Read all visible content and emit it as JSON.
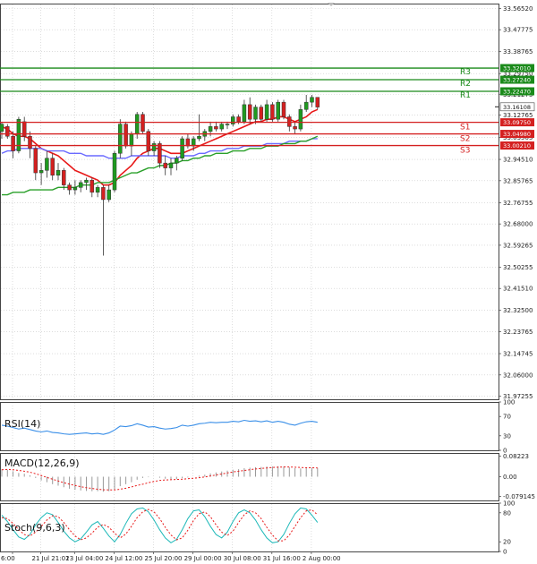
{
  "chart_data": [
    {
      "type": "candlestick",
      "panel": "price",
      "ylim": [
        31.96,
        33.585
      ],
      "y_ticks": [
        "33.56520",
        "33.47775",
        "33.38765",
        "33.29750",
        "33.21275",
        "33.12765",
        "33.03505",
        "32.94510",
        "32.85765",
        "32.76755",
        "32.68000",
        "32.59265",
        "32.50255",
        "32.41510",
        "32.32500",
        "32.23765",
        "32.14745",
        "32.06000",
        "31.97255"
      ],
      "y_tick_values": [
        33.5652,
        33.47775,
        33.38765,
        33.2975,
        33.21275,
        33.12765,
        33.03505,
        32.9451,
        32.85765,
        32.76755,
        32.68,
        32.59265,
        32.50255,
        32.4151,
        32.325,
        32.23765,
        32.14745,
        32.06,
        31.97255
      ],
      "x_ticks": [
        "6:00",
        "21 Jul 21:01",
        "23 Jul 04:00",
        "24 Jul 12:00",
        "25 Jul 20:00",
        "29 Jul 00:00",
        "30 Jul 08:00",
        "31 Jul 16:00",
        "2 Aug 00:00"
      ],
      "levels": [
        {
          "name": "R3",
          "value": 33.3201,
          "label": "33.32010",
          "color": "#1a8a1a"
        },
        {
          "name": "R2",
          "value": 33.2724,
          "label": "33.27240",
          "color": "#1a8a1a"
        },
        {
          "name": "R1",
          "value": 33.2247,
          "label": "33.22470",
          "color": "#1a8a1a"
        },
        {
          "name": "S1",
          "value": 33.0975,
          "label": "33.09750",
          "color": "#d42020"
        },
        {
          "name": "S2",
          "value": 33.0498,
          "label": "33.04980",
          "color": "#d42020"
        },
        {
          "name": "S3",
          "value": 33.0021,
          "label": "33.00210",
          "color": "#d42020"
        }
      ],
      "current_price": {
        "value": 33.16108,
        "label": "33.16108"
      },
      "candles": [
        [
          33.06,
          33.1,
          33.03,
          33.09
        ],
        [
          33.08,
          33.09,
          33.03,
          33.04
        ],
        [
          33.04,
          33.06,
          32.95,
          32.98
        ],
        [
          32.98,
          33.12,
          32.97,
          33.11
        ],
        [
          33.1,
          33.12,
          33.02,
          33.04
        ],
        [
          33.04,
          33.06,
          32.95,
          32.99
        ],
        [
          32.99,
          33.0,
          32.86,
          32.89
        ],
        [
          32.89,
          32.93,
          32.84,
          32.9
        ],
        [
          32.9,
          32.98,
          32.87,
          32.95
        ],
        [
          32.95,
          32.97,
          32.86,
          32.88
        ],
        [
          32.88,
          32.93,
          32.86,
          32.9
        ],
        [
          32.9,
          32.91,
          32.82,
          32.84
        ],
        [
          32.84,
          32.85,
          32.8,
          32.82
        ],
        [
          32.82,
          32.86,
          32.8,
          32.83
        ],
        [
          32.83,
          32.86,
          32.81,
          32.85
        ],
        [
          32.85,
          32.87,
          32.82,
          32.86
        ],
        [
          32.86,
          32.87,
          32.79,
          32.81
        ],
        [
          32.81,
          32.84,
          32.79,
          32.83
        ],
        [
          32.83,
          32.84,
          32.55,
          32.78
        ],
        [
          32.78,
          32.84,
          32.77,
          32.82
        ],
        [
          32.82,
          32.98,
          32.81,
          32.97
        ],
        [
          32.97,
          33.11,
          32.95,
          33.09
        ],
        [
          33.09,
          33.1,
          32.99,
          33.0
        ],
        [
          33.0,
          33.06,
          32.96,
          33.05
        ],
        [
          33.05,
          33.14,
          33.03,
          33.13
        ],
        [
          33.13,
          33.14,
          33.05,
          33.06
        ],
        [
          33.06,
          33.07,
          32.96,
          32.98
        ],
        [
          32.98,
          33.02,
          32.96,
          33.01
        ],
        [
          33.01,
          33.02,
          32.91,
          32.93
        ],
        [
          32.93,
          32.96,
          32.88,
          32.91
        ],
        [
          32.91,
          32.95,
          32.88,
          32.93
        ],
        [
          32.93,
          32.96,
          32.9,
          32.95
        ],
        [
          32.95,
          33.04,
          32.94,
          33.03
        ],
        [
          33.03,
          33.05,
          32.99,
          33.0
        ],
        [
          33.0,
          33.04,
          32.98,
          33.03
        ],
        [
          33.03,
          33.13,
          33.02,
          33.04
        ],
        [
          33.04,
          33.07,
          33.02,
          33.06
        ],
        [
          33.06,
          33.1,
          33.04,
          33.08
        ],
        [
          33.08,
          33.1,
          33.06,
          33.07
        ],
        [
          33.07,
          33.1,
          33.06,
          33.09
        ],
        [
          33.09,
          33.1,
          33.07,
          33.09
        ],
        [
          33.09,
          33.13,
          33.08,
          33.12
        ],
        [
          33.12,
          33.13,
          33.09,
          33.1
        ],
        [
          33.1,
          33.19,
          33.09,
          33.17
        ],
        [
          33.17,
          33.2,
          33.09,
          33.11
        ],
        [
          33.11,
          33.17,
          33.09,
          33.16
        ],
        [
          33.16,
          33.17,
          33.1,
          33.11
        ],
        [
          33.11,
          33.19,
          33.1,
          33.17
        ],
        [
          33.17,
          33.18,
          33.1,
          33.11
        ],
        [
          33.11,
          33.19,
          33.1,
          33.18
        ],
        [
          33.18,
          33.19,
          33.11,
          33.12
        ],
        [
          33.12,
          33.13,
          33.06,
          33.08
        ],
        [
          33.08,
          33.1,
          33.05,
          33.07
        ],
        [
          33.07,
          33.17,
          33.06,
          33.15
        ],
        [
          33.15,
          33.21,
          33.14,
          33.18
        ],
        [
          33.18,
          33.21,
          33.16,
          33.2
        ],
        [
          33.2,
          33.2,
          33.15,
          33.16
        ]
      ],
      "series": [
        {
          "values": [
            33.08,
            33.07,
            33.05,
            33.04,
            33.04,
            33.03,
            33.01,
            32.99,
            32.98,
            32.97,
            32.96,
            32.94,
            32.92,
            32.9,
            32.89,
            32.88,
            32.87,
            32.86,
            32.84,
            32.84,
            32.85,
            32.88,
            32.9,
            32.92,
            32.95,
            32.97,
            32.98,
            32.99,
            32.99,
            32.98,
            32.97,
            32.97,
            32.97,
            32.98,
            32.99,
            33.0,
            33.01,
            33.02,
            33.03,
            33.04,
            33.05,
            33.06,
            33.07,
            33.08,
            33.09,
            33.1,
            33.1,
            33.11,
            33.11,
            33.12,
            33.12,
            33.11,
            33.1,
            33.11,
            33.12,
            33.14,
            33.15
          ],
          "color": "#e81818"
        },
        {
          "values": [
            32.97,
            32.98,
            32.98,
            32.99,
            32.99,
            32.99,
            32.99,
            32.99,
            32.98,
            32.98,
            32.98,
            32.98,
            32.97,
            32.97,
            32.97,
            32.96,
            32.96,
            32.96,
            32.96,
            32.95,
            32.95,
            32.95,
            32.95,
            32.96,
            32.96,
            32.96,
            32.96,
            32.96,
            32.96,
            32.96,
            32.95,
            32.95,
            32.96,
            32.96,
            32.96,
            32.97,
            32.97,
            32.98,
            32.98,
            32.98,
            32.99,
            32.99,
            32.99,
            33.0,
            33.0,
            33.0,
            33.0,
            33.01,
            33.01,
            33.01,
            33.01,
            33.02,
            33.02,
            33.02,
            33.02,
            33.03,
            33.03
          ],
          "color": "#6a6aff"
        },
        {
          "values": [
            32.8,
            32.8,
            32.81,
            32.81,
            32.81,
            32.82,
            32.82,
            32.82,
            32.82,
            32.82,
            32.83,
            32.83,
            32.83,
            32.83,
            32.84,
            32.84,
            32.84,
            32.85,
            32.85,
            32.85,
            32.86,
            32.87,
            32.88,
            32.89,
            32.89,
            32.9,
            32.91,
            32.91,
            32.92,
            32.92,
            32.93,
            32.93,
            32.94,
            32.94,
            32.95,
            32.95,
            32.96,
            32.96,
            32.97,
            32.97,
            32.97,
            32.98,
            32.98,
            32.98,
            32.99,
            32.99,
            32.99,
            33.0,
            33.0,
            33.0,
            33.01,
            33.01,
            33.01,
            33.02,
            33.02,
            33.03,
            33.04
          ],
          "color": "#2aa02a"
        }
      ]
    },
    {
      "type": "line",
      "panel": "rsi",
      "title": "RSI(14)",
      "ylim": [
        0,
        100
      ],
      "y_ticks": [
        "100",
        "70",
        "30",
        "0"
      ],
      "y_tick_values": [
        100,
        70,
        30,
        0
      ],
      "series": [
        {
          "values": [
            52,
            50,
            47,
            44,
            46,
            43,
            40,
            38,
            40,
            37,
            36,
            34,
            33,
            34,
            35,
            36,
            34,
            35,
            33,
            36,
            42,
            50,
            49,
            51,
            55,
            52,
            48,
            49,
            46,
            44,
            45,
            47,
            52,
            50,
            52,
            55,
            56,
            58,
            57,
            58,
            58,
            60,
            59,
            62,
            60,
            61,
            59,
            61,
            58,
            60,
            58,
            54,
            52,
            56,
            59,
            60,
            58
          ],
          "color": "#3a8fe8"
        }
      ]
    },
    {
      "type": "bar",
      "panel": "macd",
      "title": "MACD(12,26,9)",
      "ylim": [
        -0.095,
        0.095
      ],
      "y_ticks": [
        "0.08223",
        "0.00",
        "-0.079145"
      ],
      "y_tick_values": [
        0.08223,
        0.0,
        -0.079145
      ],
      "values": [
        0.03,
        0.028,
        0.022,
        0.015,
        0.012,
        0.006,
        -0.005,
        -0.015,
        -0.022,
        -0.03,
        -0.036,
        -0.042,
        -0.048,
        -0.052,
        -0.055,
        -0.057,
        -0.058,
        -0.058,
        -0.06,
        -0.058,
        -0.05,
        -0.038,
        -0.03,
        -0.022,
        -0.012,
        -0.005,
        -0.002,
        0.0,
        -0.004,
        -0.008,
        -0.01,
        -0.01,
        -0.006,
        -0.003,
        0.0,
        0.004,
        0.008,
        0.013,
        0.017,
        0.021,
        0.024,
        0.028,
        0.03,
        0.034,
        0.036,
        0.038,
        0.039,
        0.041,
        0.041,
        0.042,
        0.041,
        0.038,
        0.034,
        0.033,
        0.034,
        0.035,
        0.035
      ],
      "series": [
        {
          "values": [
            0.028,
            0.029,
            0.028,
            0.025,
            0.022,
            0.018,
            0.012,
            0.005,
            -0.003,
            -0.01,
            -0.017,
            -0.024,
            -0.03,
            -0.035,
            -0.04,
            -0.044,
            -0.047,
            -0.05,
            -0.052,
            -0.053,
            -0.053,
            -0.05,
            -0.046,
            -0.041,
            -0.035,
            -0.03,
            -0.024,
            -0.019,
            -0.015,
            -0.013,
            -0.012,
            -0.011,
            -0.01,
            -0.008,
            -0.006,
            -0.004,
            -0.001,
            0.003,
            0.007,
            0.011,
            0.015,
            0.019,
            0.022,
            0.025,
            0.028,
            0.031,
            0.033,
            0.035,
            0.037,
            0.038,
            0.039,
            0.039,
            0.038,
            0.037,
            0.036,
            0.036,
            0.035
          ],
          "color": "#e81818"
        }
      ]
    },
    {
      "type": "line",
      "panel": "stoch",
      "title": "Stoch(9,6,3)",
      "ylim": [
        0,
        100
      ],
      "y_ticks": [
        "100",
        "80",
        "20",
        "0"
      ],
      "y_tick_values": [
        100,
        80,
        20,
        0
      ],
      "series": [
        {
          "values": [
            75,
            62,
            45,
            30,
            25,
            35,
            55,
            70,
            80,
            76,
            60,
            42,
            28,
            20,
            26,
            40,
            55,
            62,
            48,
            32,
            20,
            35,
            58,
            78,
            88,
            90,
            82,
            65,
            45,
            28,
            18,
            25,
            45,
            68,
            84,
            86,
            72,
            52,
            35,
            28,
            40,
            62,
            80,
            86,
            80,
            65,
            45,
            28,
            18,
            20,
            35,
            58,
            78,
            90,
            88,
            75,
            60
          ],
          "color": "#1cb8b8"
        },
        {
          "values": [
            70,
            68,
            58,
            45,
            35,
            32,
            40,
            52,
            65,
            74,
            72,
            60,
            45,
            32,
            24,
            28,
            38,
            50,
            56,
            50,
            38,
            28,
            36,
            52,
            70,
            82,
            87,
            82,
            68,
            50,
            34,
            24,
            28,
            44,
            64,
            78,
            82,
            72,
            55,
            40,
            33,
            42,
            60,
            76,
            84,
            80,
            68,
            50,
            34,
            22,
            22,
            34,
            52,
            70,
            84,
            86,
            76
          ],
          "color": "#e81818"
        }
      ]
    }
  ]
}
